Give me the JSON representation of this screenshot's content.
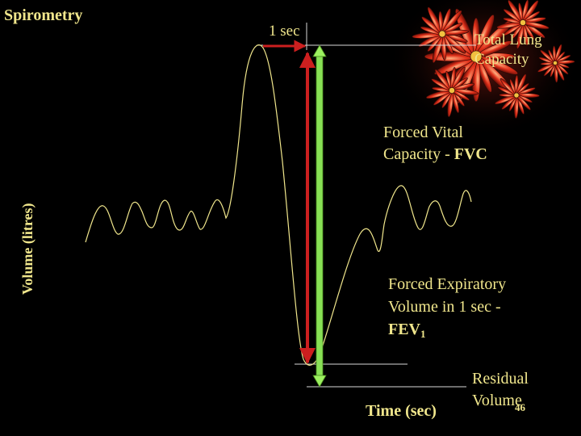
{
  "slide": {
    "title": "Spirometry",
    "page_number": "46"
  },
  "labels": {
    "one_sec": "1 sec",
    "total_lung_capacity": "Total Lung Capacity",
    "fvc_line1": "Forced Vital",
    "fvc_line2_prefix": "Capacity - ",
    "fvc_abbr": "FVC",
    "fev_line1": "Forced Expiratory",
    "fev_line2": "Volume in 1 sec -",
    "fev_abbr": "FEV",
    "fev_sub": "1",
    "residual_line1": "Residual",
    "residual_line2": "Volume",
    "x_axis": "Time (sec)",
    "y_axis": "Volume (litres)"
  },
  "colors": {
    "background": "#000000",
    "text": "#f0e68c",
    "trace": "#f0e68c",
    "fev_arrow": "#cc1f1f",
    "fvc_arrow": "#88e055",
    "one_sec_arrow": "#cc1f1f",
    "reference_lines": "#d8d8d8"
  },
  "icons": {
    "decoration": "red-flower-cluster-decoration"
  }
}
